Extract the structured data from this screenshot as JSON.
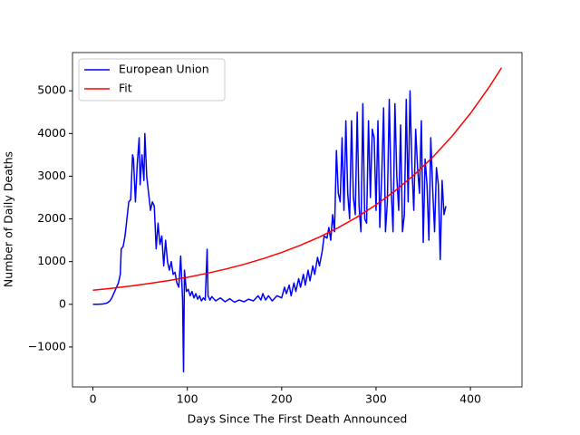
{
  "chart_data": {
    "type": "line",
    "xlabel": "Days Since The First Death Announced",
    "ylabel": "Number of Daily Deaths",
    "xlim": [
      -21.65,
      454.65
    ],
    "ylim": [
      -1936,
      5896
    ],
    "xticks": [
      0,
      100,
      200,
      300,
      400
    ],
    "yticks": [
      {
        "value": -1000,
        "label": "−1000"
      },
      0,
      1000,
      2000,
      3000,
      4000,
      5000
    ],
    "legend": "upper left",
    "series": [
      {
        "name": "European Union",
        "color": "#0000ff",
        "x": [
          0,
          5,
          10,
          15,
          18,
          20,
          22,
          25,
          27,
          29,
          30,
          32,
          34,
          36,
          38,
          40,
          42,
          43,
          45,
          47,
          49,
          50,
          52,
          54,
          55,
          57,
          59,
          61,
          63,
          65,
          67,
          69,
          71,
          73,
          75,
          77,
          79,
          81,
          83,
          85,
          87,
          89,
          91,
          93,
          95,
          96,
          97,
          99,
          101,
          103,
          105,
          107,
          109,
          111,
          113,
          115,
          117,
          119,
          121,
          122,
          124,
          126,
          130,
          135,
          140,
          145,
          150,
          155,
          160,
          165,
          170,
          175,
          178,
          180,
          183,
          186,
          190,
          195,
          200,
          203,
          205,
          208,
          210,
          213,
          215,
          218,
          220,
          223,
          225,
          228,
          230,
          233,
          235,
          238,
          240,
          243,
          245,
          248,
          250,
          252,
          254,
          256,
          258,
          260,
          262,
          264,
          266,
          268,
          270,
          272,
          274,
          276,
          278,
          280,
          282,
          284,
          286,
          288,
          290,
          292,
          294,
          296,
          298,
          300,
          302,
          304,
          306,
          308,
          310,
          312,
          314,
          316,
          318,
          320,
          322,
          324,
          326,
          328,
          330,
          332,
          334,
          336,
          338,
          340,
          342,
          344,
          346,
          348,
          350,
          352,
          354,
          356,
          358,
          360,
          362,
          364,
          366,
          368,
          370,
          372,
          374
        ],
        "values": [
          0,
          0,
          5,
          30,
          80,
          150,
          250,
          400,
          500,
          700,
          1300,
          1350,
          1600,
          2000,
          2400,
          2450,
          3500,
          3400,
          2400,
          3300,
          3900,
          2800,
          3500,
          2900,
          4000,
          3000,
          2600,
          2200,
          2400,
          2300,
          1300,
          1900,
          1400,
          1600,
          900,
          1500,
          1000,
          800,
          1000,
          700,
          750,
          500,
          400,
          1130,
          100,
          -1580,
          800,
          300,
          350,
          200,
          300,
          150,
          250,
          120,
          200,
          80,
          150,
          100,
          1290,
          200,
          100,
          180,
          80,
          150,
          60,
          130,
          50,
          100,
          60,
          120,
          80,
          200,
          100,
          250,
          100,
          200,
          80,
          200,
          150,
          400,
          250,
          450,
          200,
          500,
          300,
          600,
          400,
          700,
          450,
          800,
          550,
          900,
          700,
          1100,
          900,
          1250,
          1600,
          1550,
          1800,
          1500,
          2100,
          1700,
          3600,
          2600,
          2400,
          3900,
          2200,
          4300,
          2600,
          2000,
          4300,
          2500,
          2100,
          4500,
          2300,
          1700,
          4700,
          2000,
          1900,
          4300,
          2500,
          4100,
          3900,
          2200,
          4300,
          1800,
          3000,
          4600,
          1700,
          2400,
          4800,
          2700,
          1700,
          4700,
          3000,
          2200,
          4200,
          1700,
          2100,
          4800,
          2400,
          5000,
          3200,
          2200,
          4100,
          3200,
          2600,
          4300,
          1450,
          3400,
          2800,
          1500,
          3900,
          2700,
          1700,
          3200,
          2800,
          1050,
          2900,
          2100,
          2300
        ]
      },
      {
        "name": "Fit",
        "color": "#ff0000",
        "x": [
          0,
          20,
          40,
          60,
          80,
          100,
          120,
          140,
          160,
          180,
          200,
          220,
          240,
          260,
          280,
          300,
          320,
          340,
          360,
          380,
          400,
          420,
          433
        ],
        "values": [
          330,
          376,
          428,
          488,
          556,
          633,
          721,
          822,
          936,
          1066,
          1215,
          1384,
          1576,
          1796,
          2045,
          2330,
          2654,
          3024,
          3445,
          3924,
          4471,
          5093,
          5541
        ]
      }
    ]
  }
}
